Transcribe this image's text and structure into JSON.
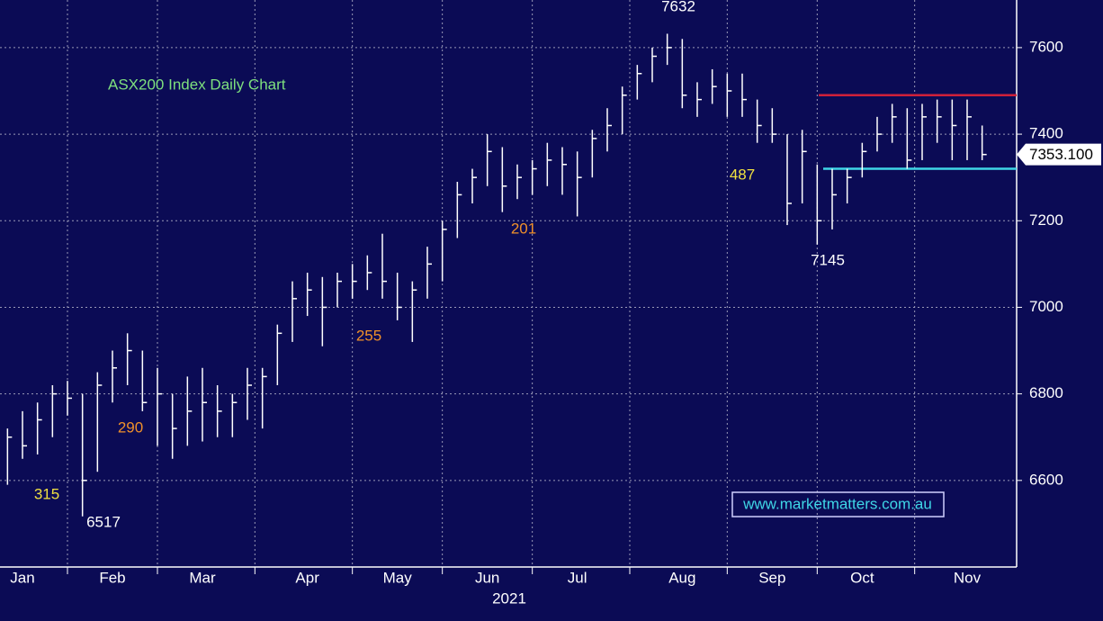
{
  "chart_data": {
    "type": "ohlc",
    "title": "ASX200 Index Daily Chart",
    "title_color": "#7ee07e",
    "bar_color": "#ffffff",
    "categories": [
      null,
      "Jan",
      null,
      null,
      null,
      null,
      null,
      "Feb",
      null,
      null,
      null,
      null,
      null,
      "Mar",
      null,
      null,
      null,
      null,
      null,
      null,
      "Apr",
      null,
      null,
      null,
      null,
      null,
      "May",
      null,
      null,
      null,
      null,
      null,
      "Jun",
      null,
      null,
      null,
      null,
      null,
      "Jul",
      null,
      null,
      null,
      null,
      null,
      null,
      "Aug",
      null,
      null,
      null,
      null,
      null,
      "Sep",
      null,
      null,
      null,
      null,
      null,
      "Oct",
      null,
      null,
      null,
      null,
      null,
      null,
      "Nov",
      null
    ],
    "high": [
      6720,
      6760,
      6780,
      6820,
      6830,
      6800,
      6850,
      6900,
      6940,
      6900,
      6860,
      6800,
      6840,
      6860,
      6820,
      6800,
      6860,
      6860,
      6960,
      7060,
      7080,
      7070,
      7080,
      7100,
      7120,
      7170,
      7080,
      7060,
      7140,
      7200,
      7290,
      7320,
      7400,
      7370,
      7330,
      7340,
      7380,
      7370,
      7360,
      7410,
      7460,
      7510,
      7560,
      7600,
      7632,
      7620,
      7520,
      7550,
      7540,
      7540,
      7480,
      7460,
      7400,
      7410,
      7330,
      7320,
      7320,
      7380,
      7440,
      7470,
      7460,
      7470,
      7480,
      7480,
      7480,
      7420
    ],
    "low": [
      6590,
      6650,
      6660,
      6700,
      6750,
      6517,
      6620,
      6780,
      6820,
      6760,
      6680,
      6650,
      6680,
      6690,
      6700,
      6700,
      6740,
      6720,
      6820,
      6920,
      6980,
      6910,
      7000,
      7020,
      7040,
      7020,
      6970,
      6920,
      7020,
      7060,
      7160,
      7240,
      7280,
      7220,
      7250,
      7260,
      7280,
      7260,
      7210,
      7300,
      7360,
      7400,
      7480,
      7520,
      7560,
      7460,
      7440,
      7470,
      7440,
      7440,
      7380,
      7380,
      7190,
      7240,
      7145,
      7180,
      7240,
      7300,
      7360,
      7380,
      7320,
      7340,
      7380,
      7340,
      7340,
      7340
    ],
    "close": [
      6700,
      6680,
      6740,
      6800,
      6790,
      6600,
      6820,
      6860,
      6900,
      6780,
      6800,
      6720,
      6760,
      6780,
      6760,
      6780,
      6820,
      6840,
      6940,
      7020,
      7040,
      7000,
      7060,
      7060,
      7080,
      7060,
      7000,
      7040,
      7100,
      7180,
      7260,
      7300,
      7360,
      7280,
      7300,
      7320,
      7340,
      7330,
      7300,
      7390,
      7420,
      7490,
      7540,
      7580,
      7600,
      7490,
      7480,
      7510,
      7500,
      7480,
      7420,
      7400,
      7240,
      7360,
      7200,
      7260,
      7300,
      7360,
      7400,
      7440,
      7340,
      7440,
      7440,
      7420,
      7440,
      7353
    ],
    "ylim": [
      6400,
      7710
    ],
    "yticks": [
      6600,
      6800,
      7000,
      7200,
      7400,
      7600
    ],
    "grid": true,
    "x_axis_label": "2021",
    "last_price_label": "7353.100",
    "hlines": [
      {
        "value": 7490,
        "color": "#d0203a"
      },
      {
        "value": 7320,
        "color": "#3fd6e6"
      }
    ],
    "annotations": [
      {
        "text": "7632",
        "color": "#ffffff"
      },
      {
        "text": "6517",
        "color": "#ffffff"
      },
      {
        "text": "7145",
        "color": "#ffffff"
      },
      {
        "text": "315",
        "color": "#f0e040"
      },
      {
        "text": "290",
        "color": "#f0902a"
      },
      {
        "text": "255",
        "color": "#f0902a"
      },
      {
        "text": "201",
        "color": "#f0902a"
      },
      {
        "text": "487",
        "color": "#f0e040"
      }
    ],
    "watermark": "www.marketmatters.com.au"
  }
}
